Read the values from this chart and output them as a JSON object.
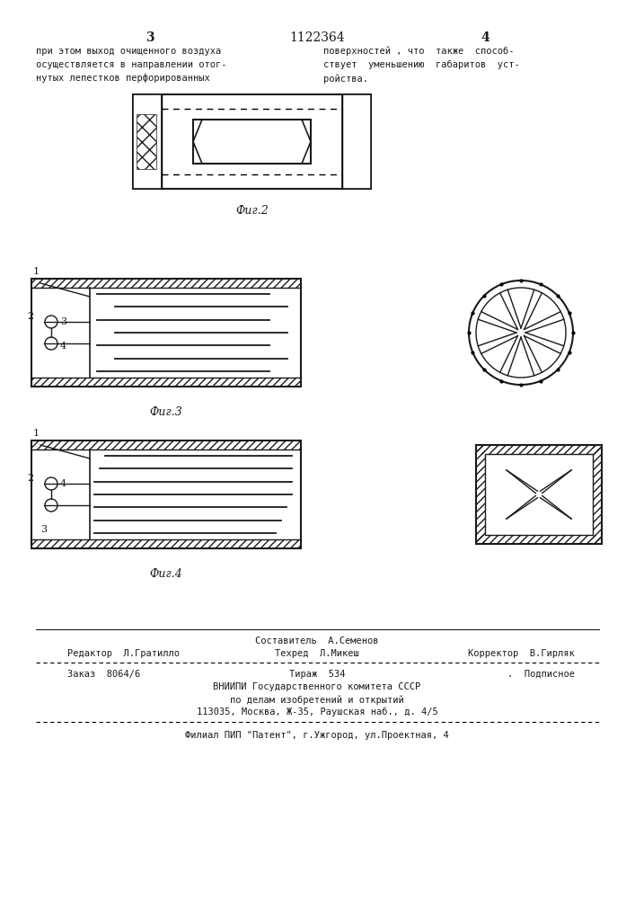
{
  "bg_color": "#f5f5f0",
  "page_color": "#ffffff",
  "header_text_left": "при этом выход очищенного воздуха\nосуществляется в направлении отог-\nнутых лепестков перфорированных",
  "header_text_right": "поверхностей , что  также  способ-\nствует  уменьшению  габаритов  уст-\nройства.",
  "page_number_left": "3",
  "page_number_center": "1122364",
  "page_number_right": "4",
  "fig2_caption": "Фиг.2",
  "fig3_caption": "Фиг.3",
  "fig4_caption": "Фиг.4",
  "footer_line1": "Составитель  А.Семенов",
  "footer_line2_left": "Редактор  Л.Гратилло",
  "footer_line2_mid": "Техред  Л.Микеш",
  "footer_line2_right": "Корректор  В.Гирляк",
  "footer_line3_left": "Заказ  8064/6",
  "footer_line3_mid": "Тираж  534",
  "footer_line3_right": ".  Подписное",
  "footer_line4": "ВНИИПИ Государственного комитета СССР",
  "footer_line5": "по делам изобретений и открытий",
  "footer_line6": "113035, Москва, Ж-35, Раушская наб., д. 4/5",
  "footer_line7": "Филиал ПИП \"Патент\", г.Ужгород, ул.Проектная, 4"
}
